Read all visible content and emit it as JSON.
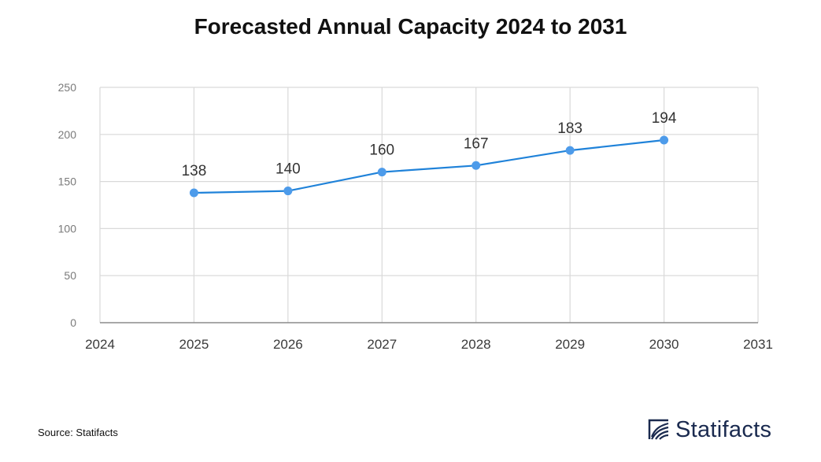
{
  "title": "Forecasted Annual Capacity 2024 to 2031",
  "source": "Source: Statifacts",
  "brand": {
    "name": "Statifacts",
    "logo_icon": "statifacts-logo-icon",
    "color": "#1a2a4f"
  },
  "chart_data": {
    "type": "line",
    "title": "Forecasted Annual Capacity 2024 to 2031",
    "xlabel": "",
    "ylabel": "",
    "x_ticks": [
      "2024",
      "2025",
      "2026",
      "2027",
      "2028",
      "2029",
      "2030",
      "2031"
    ],
    "xlim": [
      2024,
      2031
    ],
    "y_ticks": [
      "0",
      "50",
      "100",
      "150",
      "200",
      "250"
    ],
    "ylim": [
      0,
      250
    ],
    "grid": true,
    "series": [
      {
        "x": [
          2025,
          2026,
          2027,
          2028,
          2029,
          2030
        ],
        "values": [
          138,
          140,
          160,
          167,
          183,
          194
        ],
        "labels": [
          "138",
          "140",
          "160",
          "167",
          "183",
          "194"
        ],
        "color": "#1f82d9",
        "marker_color": "#4d9bea"
      }
    ]
  }
}
